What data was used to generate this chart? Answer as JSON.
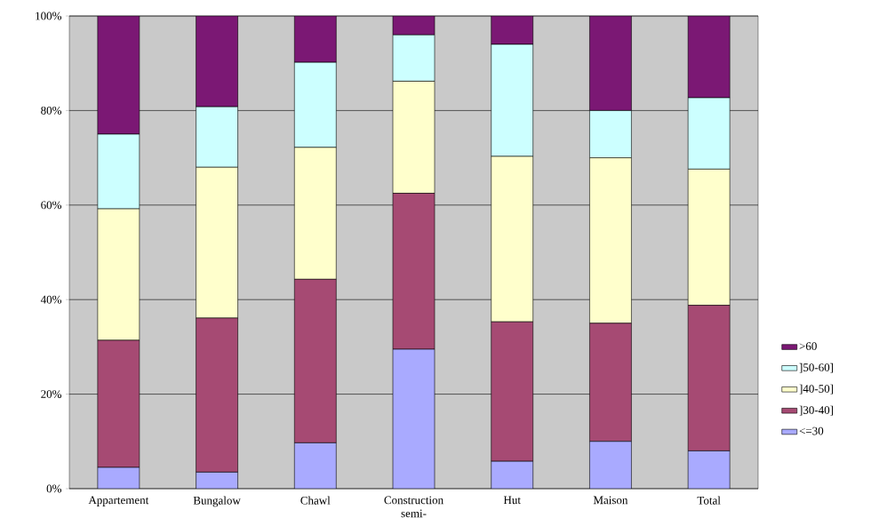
{
  "chart_data": {
    "type": "bar",
    "stacked": true,
    "categories": [
      "Appartement",
      "Bungalow",
      "Chawl",
      "Construction semi-",
      "Hut",
      "Maison",
      "Total"
    ],
    "series": [
      {
        "name": "<=30",
        "color": "#a9aaff",
        "values": [
          4.5,
          3.5,
          9.7,
          29.5,
          5.8,
          10.0,
          8.0
        ]
      },
      {
        "name": "]30-40]",
        "color": "#a64a73",
        "values": [
          26.9,
          32.6,
          34.6,
          33.0,
          29.5,
          25.0,
          30.8
        ]
      },
      {
        "name": "]40-50]",
        "color": "#ffffcc",
        "values": [
          27.8,
          31.9,
          27.9,
          23.7,
          35.0,
          35.0,
          28.8
        ]
      },
      {
        "name": "]50-60]",
        "color": "#ccffff",
        "values": [
          15.8,
          12.8,
          18.0,
          9.8,
          23.7,
          10.0,
          15.1
        ]
      },
      {
        "name": ">60",
        "color": "#7b1874",
        "values": [
          25.0,
          19.2,
          9.8,
          4.0,
          6.0,
          20.0,
          17.3
        ]
      }
    ],
    "ylim": [
      0,
      100
    ],
    "yticks": [
      {
        "value": 0,
        "label": "0%"
      },
      {
        "value": 20,
        "label": "20%"
      },
      {
        "value": 40,
        "label": "40%"
      },
      {
        "value": 60,
        "label": "60%"
      },
      {
        "value": 80,
        "label": "80%"
      },
      {
        "value": 100,
        "label": "100%"
      }
    ],
    "grid": "y",
    "legend": "right"
  }
}
